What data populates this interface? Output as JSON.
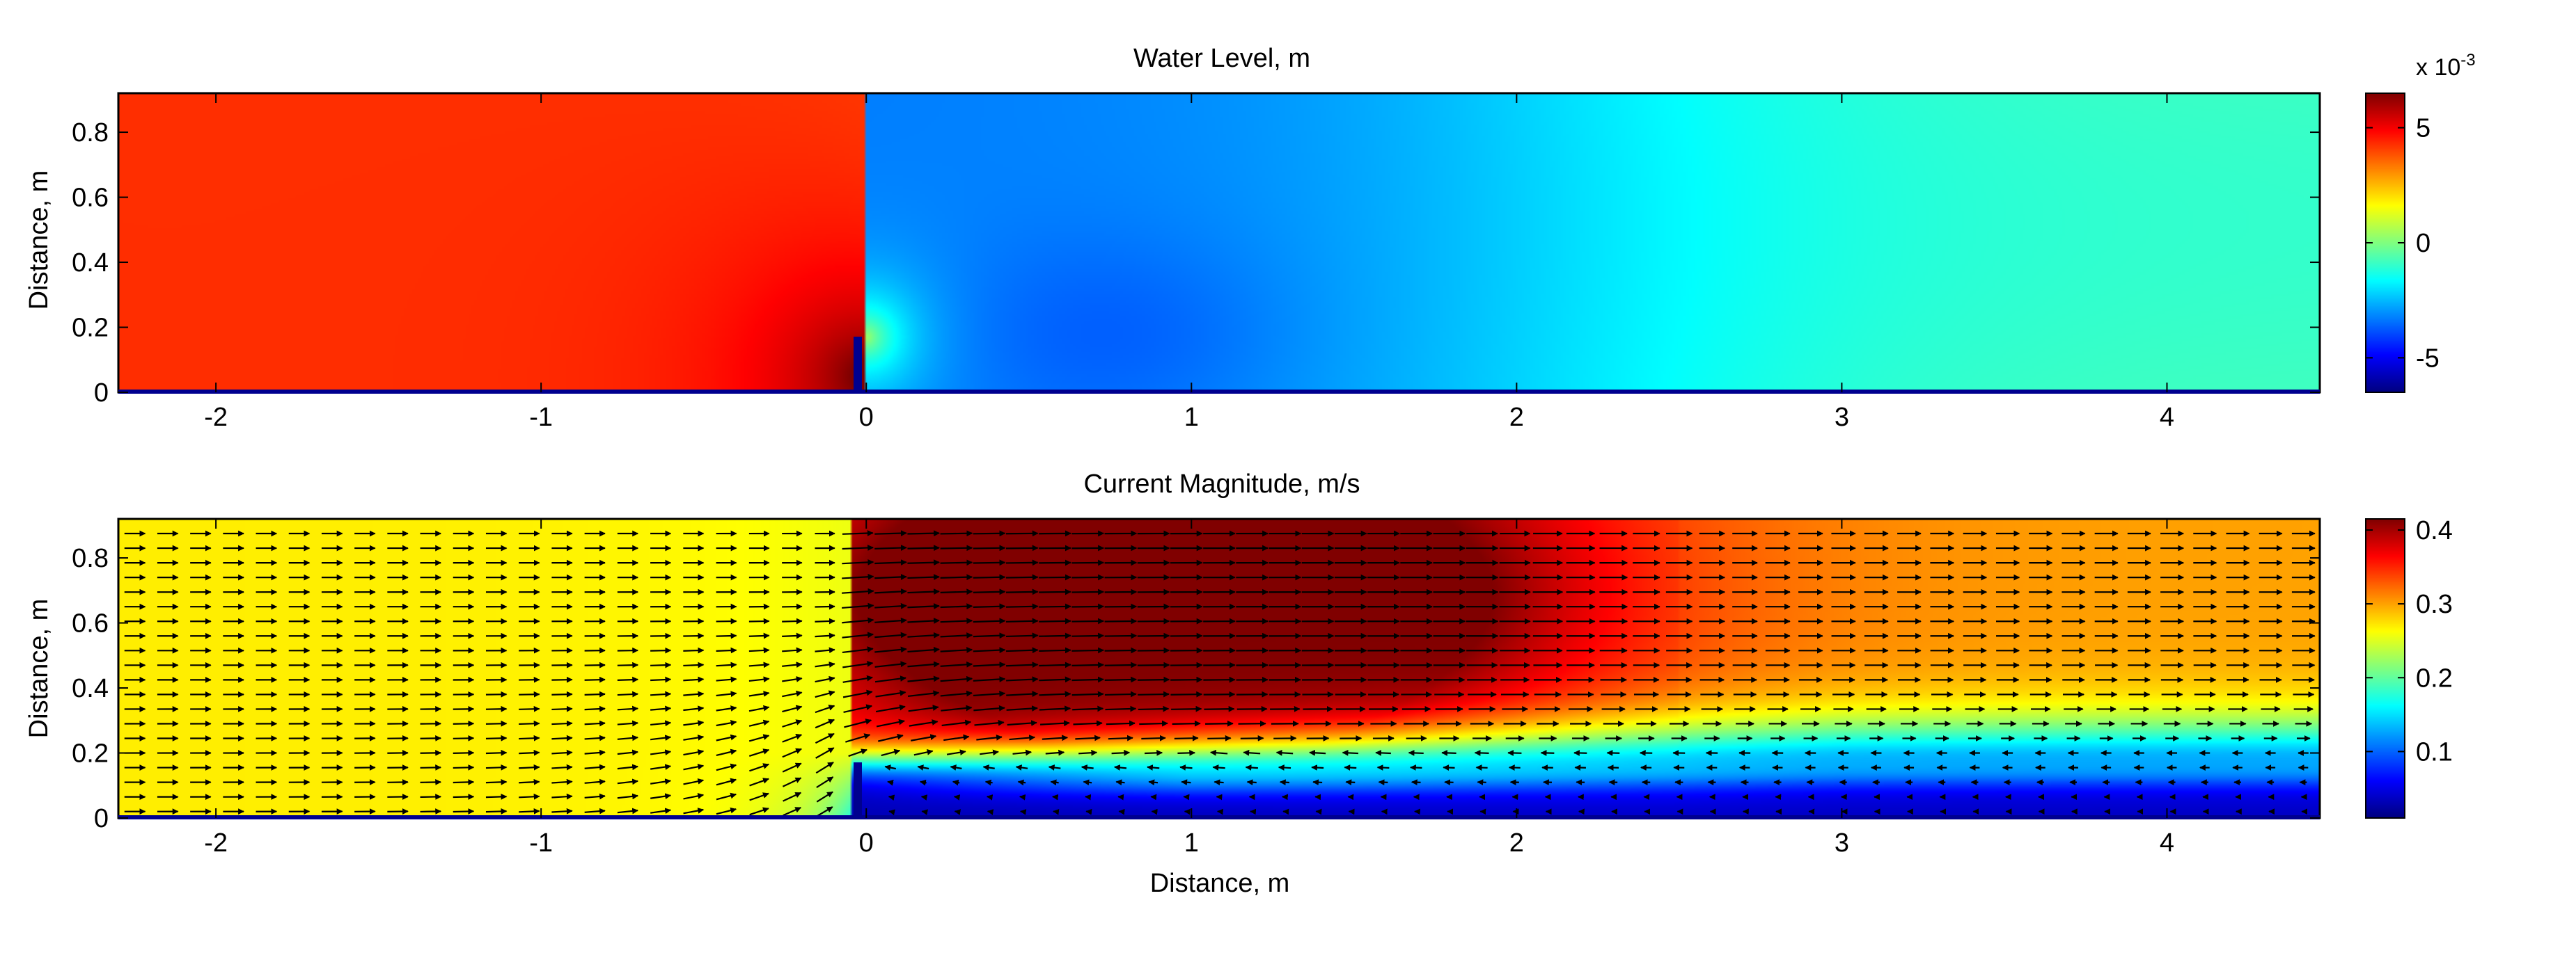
{
  "figure": {
    "panels": [
      {
        "title": "Water Level, m",
        "xlabel": "",
        "ylabel": "Distance, m",
        "colorbar_multiplier": "x 10",
        "colorbar_exponent": "-3"
      },
      {
        "title": "Current Magnitude, m/s",
        "xlabel": "Distance, m",
        "ylabel": "Distance, m"
      }
    ]
  },
  "chart_data": [
    {
      "type": "heatmap",
      "title": "Water Level, m",
      "xlabel": "",
      "ylabel": "Distance, m",
      "xlim": [
        -2.3,
        4.47
      ],
      "ylim": [
        0,
        0.92
      ],
      "x_ticks": [
        -2,
        -1,
        0,
        1,
        2,
        3,
        4
      ],
      "x_tick_labels": [
        "-2",
        "-1",
        "0",
        "1",
        "2",
        "3",
        "4"
      ],
      "y_ticks": [
        0,
        0.2,
        0.4,
        0.6,
        0.8
      ],
      "y_tick_labels": [
        "0",
        "0.2",
        "0.4",
        "0.6",
        "0.8"
      ],
      "colormap": "jet",
      "clim": [
        -6.5,
        6.5
      ],
      "colorbar_ticks": [
        -5,
        0,
        5
      ],
      "colorbar_tick_labels": [
        "-5",
        "0",
        "5"
      ],
      "colorbar_scale_label": "x 10",
      "colorbar_scale_exponent": "-3",
      "obstacle": {
        "x": 0,
        "y_top": 0.17
      },
      "field_description": "upstream water level about +4e-3 m, rising to +6e-3 m near obstacle base; drop at x=0; downstream minimum about -3.5e-3 m near x=0.75, y=0.2; recovers to about -1e-3 m beyond x=3"
    },
    {
      "type": "heatmap",
      "title": "Current Magnitude, m/s",
      "xlabel": "Distance, m",
      "ylabel": "Distance, m",
      "xlim": [
        -2.3,
        4.47
      ],
      "ylim": [
        0,
        0.92
      ],
      "x_ticks": [
        -2,
        -1,
        0,
        1,
        2,
        3,
        4
      ],
      "x_tick_labels": [
        "-2",
        "-1",
        "0",
        "1",
        "2",
        "3",
        "4"
      ],
      "y_ticks": [
        0,
        0.2,
        0.4,
        0.6,
        0.8
      ],
      "y_tick_labels": [
        "0",
        "0.2",
        "0.4",
        "0.6",
        "0.8"
      ],
      "colormap": "jet",
      "clim": [
        0.01,
        0.415
      ],
      "colorbar_ticks": [
        0.1,
        0.2,
        0.3,
        0.4
      ],
      "colorbar_tick_labels": [
        "0.1",
        "0.2",
        "0.3",
        "0.4"
      ],
      "vector_overlay": true,
      "obstacle": {
        "x": 0,
        "y_top": 0.17
      },
      "field_description": "uniform inflow about 0.27 m/s upstream; jet over obstacle peaking about 0.41 m/s near x=0.9, y=0.7; recirculation zone below y=0.25 downstream with speeds near 0.02 m/s; flow about 0.33 m/s near x=4"
    }
  ]
}
